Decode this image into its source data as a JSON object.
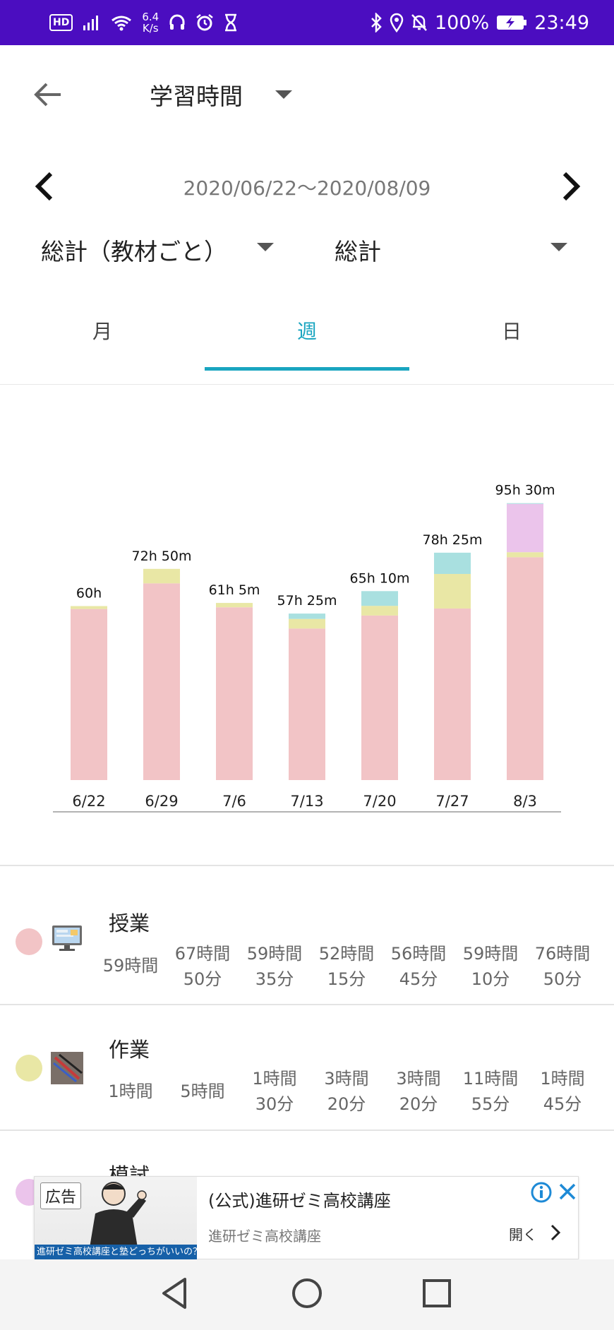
{
  "status_bar": {
    "hd": "HD",
    "speed_value": "6.4",
    "speed_unit": "K/s",
    "battery": "100%",
    "time": "23:49"
  },
  "header": {
    "title": "学習時間"
  },
  "date_range": {
    "text": "2020/06/22〜2020/08/09"
  },
  "filters": {
    "primary": "総計（教材ごと）",
    "secondary": "総計"
  },
  "tabs": [
    {
      "label": "月",
      "active": false
    },
    {
      "label": "週",
      "active": true
    },
    {
      "label": "日",
      "active": false
    }
  ],
  "colors": {
    "accent": "#1AA5C0",
    "status_bar": "#4B0DC0",
    "class": "#F2C4C6",
    "work": "#E9E7A5",
    "mock_exam": "#EBC4EB",
    "other": "#A9E0E0"
  },
  "chart_data": {
    "type": "bar",
    "stacked": true,
    "unit": "minutes",
    "categories": [
      "6/22",
      "6/29",
      "7/6",
      "7/13",
      "7/20",
      "7/27",
      "8/3"
    ],
    "totals_label": [
      "60h",
      "72h 50m",
      "61h 5m",
      "57h 25m",
      "65h 10m",
      "78h 25m",
      "95h 30m"
    ],
    "series": [
      {
        "key": "class",
        "values": [
          3540,
          4070,
          3575,
          3135,
          3405,
          3550,
          4610
        ]
      },
      {
        "key": "work",
        "values": [
          60,
          300,
          90,
          200,
          200,
          715,
          105
        ]
      },
      {
        "key": "mock_exam",
        "values": [
          0,
          0,
          0,
          0,
          0,
          0,
          1000
        ]
      },
      {
        "key": "other",
        "values": [
          0,
          0,
          0,
          110,
          305,
          440,
          15
        ]
      }
    ],
    "ylim": [
      0,
      6500
    ],
    "grid": false,
    "legend": "none"
  },
  "rows": [
    {
      "name": "授業",
      "cells": [
        [
          "59時間",
          ""
        ],
        [
          "67時間",
          "50分"
        ],
        [
          "59時間",
          "35分"
        ],
        [
          "52時間",
          "15分"
        ],
        [
          "56時間",
          "45分"
        ],
        [
          "59時間",
          "10分"
        ],
        [
          "76時間",
          "50分"
        ]
      ]
    },
    {
      "name": "作業",
      "cells": [
        [
          "1時間",
          ""
        ],
        [
          "5時間",
          ""
        ],
        [
          "1時間",
          "30分"
        ],
        [
          "3時間",
          "20分"
        ],
        [
          "3時間",
          "20分"
        ],
        [
          "11時間",
          "55分"
        ],
        [
          "1時間",
          "45分"
        ]
      ]
    },
    {
      "name": "模試"
    }
  ],
  "ad": {
    "badge": "広告",
    "image_caption": "進研ゼミ高校講座と塾どっちがいいの？",
    "title": "(公式)進研ゼミ高校講座",
    "subtitle": "進研ゼミ高校講座",
    "open_label": "開く"
  }
}
